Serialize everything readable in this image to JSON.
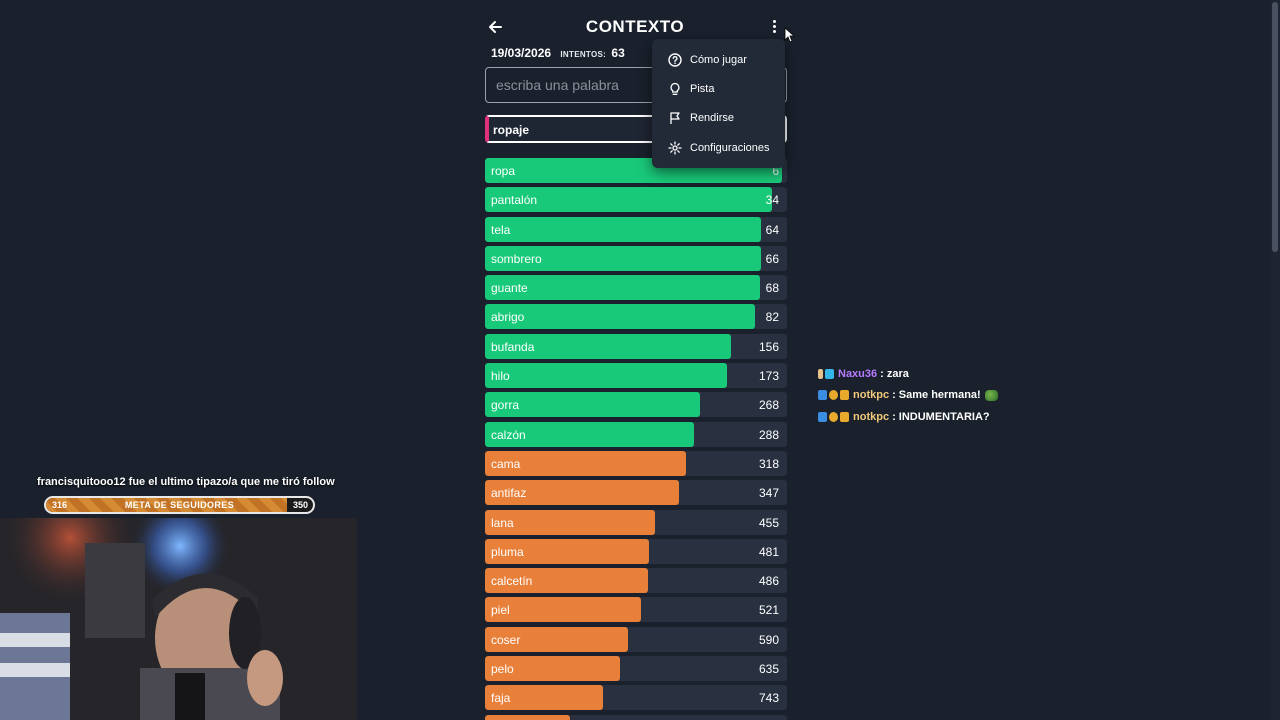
{
  "game": {
    "title": "CONTEXTO",
    "date": "19/03/2026",
    "attempts_label": "INTENTOS:",
    "attempts": "63",
    "input_placeholder": "escriba una palabra",
    "last_guess": "ropaje",
    "rows": [
      {
        "word": "ropa",
        "rank": "6",
        "status": "green",
        "fill": 0.985
      },
      {
        "word": "pantalón",
        "rank": "34",
        "status": "green",
        "fill": 0.95
      },
      {
        "word": "tela",
        "rank": "64",
        "status": "green",
        "fill": 0.915
      },
      {
        "word": "sombrero",
        "rank": "66",
        "status": "green",
        "fill": 0.913
      },
      {
        "word": "guante",
        "rank": "68",
        "status": "green",
        "fill": 0.91
      },
      {
        "word": "abrigo",
        "rank": "82",
        "status": "green",
        "fill": 0.895
      },
      {
        "word": "bufanda",
        "rank": "156",
        "status": "green",
        "fill": 0.815
      },
      {
        "word": "hilo",
        "rank": "173",
        "status": "green",
        "fill": 0.8
      },
      {
        "word": "gorra",
        "rank": "268",
        "status": "green",
        "fill": 0.712
      },
      {
        "word": "calzón",
        "rank": "288",
        "status": "green",
        "fill": 0.693
      },
      {
        "word": "cama",
        "rank": "318",
        "status": "orange",
        "fill": 0.667
      },
      {
        "word": "antifaz",
        "rank": "347",
        "status": "orange",
        "fill": 0.642
      },
      {
        "word": "lana",
        "rank": "455",
        "status": "orange",
        "fill": 0.562
      },
      {
        "word": "pluma",
        "rank": "481",
        "status": "orange",
        "fill": 0.543
      },
      {
        "word": "calcetín",
        "rank": "486",
        "status": "orange",
        "fill": 0.54
      },
      {
        "word": "piel",
        "rank": "521",
        "status": "orange",
        "fill": 0.515
      },
      {
        "word": "coser",
        "rank": "590",
        "status": "orange",
        "fill": 0.474
      },
      {
        "word": "pelo",
        "rank": "635",
        "status": "orange",
        "fill": 0.447
      },
      {
        "word": "faja",
        "rank": "743",
        "status": "orange",
        "fill": 0.39
      },
      {
        "word": "",
        "rank": "",
        "status": "orange",
        "fill": 0.28
      }
    ]
  },
  "menu": {
    "items": [
      {
        "label": "Cómo jugar",
        "icon": "help-circle-icon"
      },
      {
        "label": "Pista",
        "icon": "lightbulb-icon"
      },
      {
        "label": "Rendirse",
        "icon": "flag-icon"
      },
      {
        "label": "Configuraciones",
        "icon": "gear-icon"
      }
    ]
  },
  "overlay": {
    "last_follow": "francisquitooo12 fue el ultimo tipazo/a que me tiró follow",
    "goal": {
      "title": "META DE SEGUIDORES",
      "current": "316",
      "target": "350",
      "progress": 0.903
    }
  },
  "chat": [
    {
      "user": "Naxu36",
      "message": ": zara",
      "user_color": "#b57bff"
    },
    {
      "user": "notkpc",
      "message": ": Same hermana!",
      "user_color": "#f1c97a"
    },
    {
      "user": "notkpc",
      "message": ": INDUMENTARIA?",
      "user_color": "#f1c97a"
    }
  ],
  "colors": {
    "green": "#19c97a",
    "orange": "#e9803a",
    "background": "#1a212d",
    "row_track": "#293140",
    "accent_pink": "#e0307c"
  }
}
